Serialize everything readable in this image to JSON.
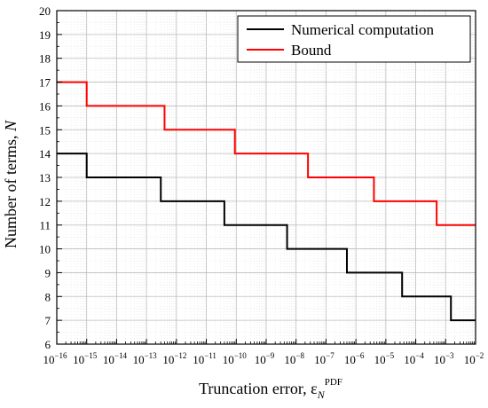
{
  "chart_data": {
    "type": "line",
    "xlabel": {
      "text": "Truncation error, ε",
      "sub": "N",
      "sup": "PDF"
    },
    "ylabel": {
      "text": "Number of terms, ",
      "italic": "N"
    },
    "x_scale": "log",
    "xlim": [
      1e-16,
      0.01
    ],
    "ylim": [
      6,
      20
    ],
    "x_tick_exponents": [
      -16,
      -15,
      -14,
      -13,
      -12,
      -11,
      -10,
      -9,
      -8,
      -7,
      -6,
      -5,
      -4,
      -3,
      -2
    ],
    "x_tick_base": "10",
    "y_ticks": [
      6,
      7,
      8,
      9,
      10,
      11,
      12,
      13,
      14,
      15,
      16,
      17,
      18,
      19,
      20
    ],
    "grid": true,
    "legend_position": "top-right",
    "colors": {
      "numerical": "#000000",
      "bound": "#ff0000"
    },
    "series": [
      {
        "name": "Numerical computation",
        "color": "#000000",
        "x": [
          1e-16,
          1e-15,
          1e-15,
          3e-13,
          3e-13,
          4e-11,
          4e-11,
          5e-09,
          5e-09,
          5e-07,
          5e-07,
          3.5e-05,
          3.5e-05,
          0.0015,
          0.0015,
          0.01
        ],
        "y": [
          14,
          14,
          13,
          13,
          12,
          12,
          11,
          11,
          10,
          10,
          9,
          9,
          8,
          8,
          7,
          7
        ]
      },
      {
        "name": "Bound",
        "color": "#ff0000",
        "x": [
          1e-16,
          1e-15,
          1e-15,
          4e-13,
          4e-13,
          9e-11,
          9e-11,
          2.5e-08,
          2.5e-08,
          4e-06,
          4e-06,
          0.0005,
          0.0005,
          0.01
        ],
        "y": [
          17,
          17,
          16,
          16,
          15,
          15,
          14,
          14,
          13,
          13,
          12,
          12,
          11,
          11
        ]
      }
    ]
  }
}
